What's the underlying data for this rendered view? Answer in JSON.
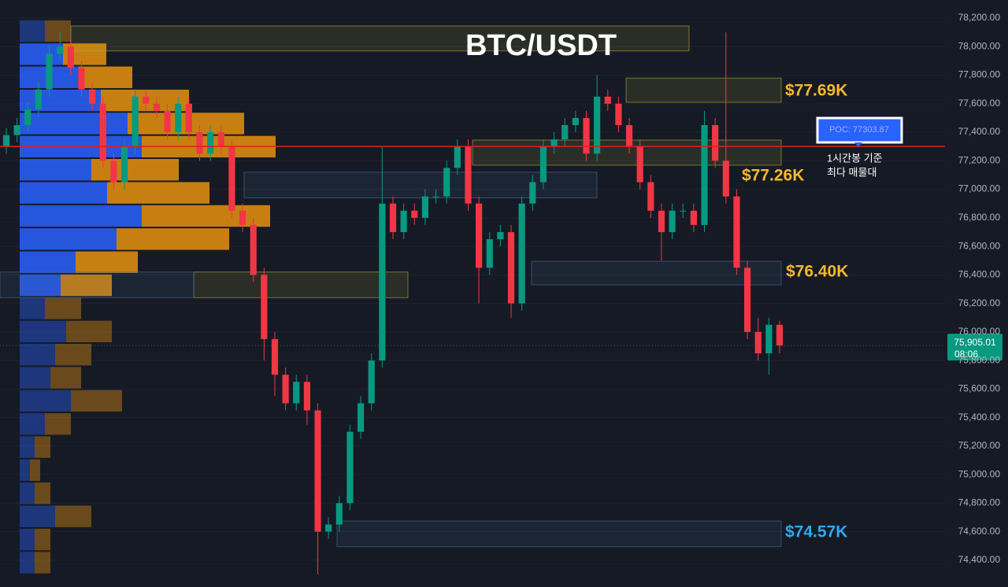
{
  "chart_data": {
    "type": "candlestick",
    "title": "BTC/USDT",
    "ylim": [
      74212,
      78327
    ],
    "yticks": [
      {
        "value": 78200,
        "label": "78,200.00"
      },
      {
        "value": 78000,
        "label": "78,000.00"
      },
      {
        "value": 77800,
        "label": "77,800.00"
      },
      {
        "value": 77600,
        "label": "77,600.00"
      },
      {
        "value": 77400,
        "label": "77,400.00"
      },
      {
        "value": 77200,
        "label": "77,200.00"
      },
      {
        "value": 77000,
        "label": "77,000.00"
      },
      {
        "value": 76800,
        "label": "76,800.00"
      },
      {
        "value": 76600,
        "label": "76,600.00"
      },
      {
        "value": 76400,
        "label": "76,400.00"
      },
      {
        "value": 76200,
        "label": "76,200.00"
      },
      {
        "value": 76000,
        "label": "76,000.00"
      },
      {
        "value": 75800,
        "label": "75,800.00"
      },
      {
        "value": 75600,
        "label": "75,600.00"
      },
      {
        "value": 75400,
        "label": "75,400.00"
      },
      {
        "value": 75200,
        "label": "75,200.00"
      },
      {
        "value": 75000,
        "label": "75,000.00"
      },
      {
        "value": 74800,
        "label": "74,800.00"
      },
      {
        "value": 74600,
        "label": "74,600.00"
      },
      {
        "value": 74400,
        "label": "74,400.00"
      }
    ],
    "up_color": "#089981",
    "down_color": "#f23645",
    "open": [
      77300,
      77380,
      77450,
      77560,
      77700,
      77950,
      78000,
      77850,
      77700,
      77600,
      77200,
      77050,
      77300,
      77650,
      77600,
      77550,
      77400,
      77600,
      77400,
      77250,
      77400,
      77300,
      76850,
      76750,
      76400,
      75950,
      75700,
      75500,
      75650,
      75450,
      74600,
      74650,
      74800,
      75300,
      75500,
      75800,
      76900,
      76700,
      76850,
      76800,
      76950,
      76950,
      77150,
      77300,
      76900,
      76450,
      76650,
      76700,
      76200,
      76900,
      77050,
      77300,
      77350,
      77450,
      77500,
      77250,
      77650,
      77600,
      77450,
      77300,
      77050,
      76850,
      76700,
      76850,
      76850,
      76750,
      77450,
      77200,
      76950,
      76450,
      76000,
      75850,
      76050
    ],
    "high": [
      77430,
      77500,
      77610,
      77750,
      78000,
      78100,
      78050,
      77900,
      77750,
      77650,
      77250,
      77350,
      77700,
      77700,
      77650,
      77600,
      77650,
      77650,
      77450,
      77450,
      77450,
      77350,
      76900,
      76800,
      76450,
      76000,
      75750,
      75700,
      75700,
      75500,
      74700,
      74850,
      75350,
      75550,
      75850,
      77300,
      76950,
      76900,
      76900,
      77000,
      77000,
      77200,
      77350,
      77350,
      76950,
      76700,
      76750,
      76750,
      76950,
      77100,
      77350,
      77400,
      77500,
      77550,
      77550,
      77800,
      77700,
      77650,
      77500,
      77350,
      77100,
      76900,
      76900,
      76900,
      76900,
      77550,
      77500,
      78100,
      77000,
      76500,
      76100,
      76100,
      76080
    ],
    "low": [
      77250,
      77330,
      77400,
      77510,
      77650,
      77900,
      77800,
      77650,
      77550,
      77150,
      77000,
      77000,
      77250,
      77550,
      77500,
      77350,
      77350,
      77350,
      77200,
      77200,
      77250,
      76800,
      76700,
      76350,
      75800,
      75550,
      75450,
      75450,
      75350,
      74300,
      74550,
      74600,
      74750,
      75250,
      75450,
      75750,
      76650,
      76650,
      76750,
      76750,
      76900,
      76900,
      77100,
      76850,
      76200,
      76400,
      76600,
      76100,
      76150,
      76850,
      77000,
      77250,
      77300,
      77400,
      77200,
      77200,
      77550,
      77400,
      77250,
      77000,
      76800,
      76500,
      76650,
      76800,
      76700,
      76700,
      77150,
      76900,
      76400,
      75950,
      75800,
      75700,
      75850
    ],
    "close": [
      77380,
      77450,
      77560,
      77700,
      77950,
      78000,
      77850,
      77700,
      77600,
      77200,
      77050,
      77300,
      77650,
      77600,
      77550,
      77400,
      77600,
      77400,
      77250,
      77400,
      77300,
      76850,
      76750,
      76400,
      75950,
      75700,
      75500,
      75650,
      75450,
      74600,
      74650,
      74800,
      75300,
      75500,
      75800,
      76900,
      76700,
      76850,
      76800,
      76950,
      76950,
      77150,
      77300,
      76900,
      76450,
      76650,
      76700,
      76200,
      76900,
      77050,
      77300,
      77350,
      77450,
      77500,
      77250,
      77650,
      77600,
      77450,
      77300,
      77050,
      76850,
      76700,
      76850,
      76850,
      76750,
      77450,
      77200,
      76950,
      76450,
      76000,
      75850,
      76050,
      75905
    ],
    "volume_profile": {
      "bins": [
        78190,
        78028,
        77866,
        77704,
        77542,
        77380,
        77218,
        77056,
        76894,
        76732,
        76570,
        76408,
        76246,
        76084,
        75922,
        75760,
        75598,
        75436,
        75274,
        75112,
        74950,
        74788,
        74626,
        74464,
        74302
      ],
      "value_area": [
        76246,
        78028
      ],
      "buy": [
        32,
        55,
        75,
        103,
        137,
        155,
        91,
        111,
        155,
        123,
        71,
        52,
        32,
        59,
        45,
        39,
        65,
        32,
        19,
        13,
        19,
        45,
        19,
        19
      ],
      "sell": [
        33,
        55,
        68,
        112,
        148,
        170,
        111,
        130,
        163,
        143,
        79,
        65,
        46,
        58,
        46,
        39,
        65,
        33,
        20,
        13,
        20,
        46,
        20,
        20
      ],
      "buy_color": "#2962ff",
      "sell_color": "#e8920f"
    },
    "zones": [
      {
        "top": 78145,
        "bottom": 77970,
        "color": "#b4aa3c"
      },
      {
        "top": 77780,
        "bottom": 77610,
        "color": "#b4aa3c"
      },
      {
        "top": 77345,
        "bottom": 77169,
        "color": "#b4aa3c"
      },
      {
        "top": 77120,
        "bottom": 76940,
        "color": "#4a6a96"
      },
      {
        "top": 76495,
        "bottom": 76330,
        "color": "#4a6a96"
      },
      {
        "top": 76420,
        "bottom": 76240,
        "color": "#b4aa3c"
      },
      {
        "top": 74675,
        "bottom": 74495,
        "color": "#4a6a96"
      },
      {
        "top": 76420,
        "bottom": 76240,
        "color": "#4a6a96"
      }
    ],
    "level_labels": [
      {
        "text": "$77.69K",
        "color": "#f5b82e"
      },
      {
        "text": "$77.26K",
        "color": "#f5b82e"
      },
      {
        "text": "$76.40K",
        "color": "#f5b82e"
      },
      {
        "text": "$74.57K",
        "color": "#2ea8f5"
      }
    ],
    "poc": {
      "value": 77300,
      "label": "POC: 77303.87",
      "color": "#e01e1e",
      "note": [
        "1시간봉 기준",
        "최다 매물대"
      ]
    },
    "last_price": {
      "value": 75905.01,
      "label": "75,905.01",
      "countdown": "08:06"
    }
  }
}
